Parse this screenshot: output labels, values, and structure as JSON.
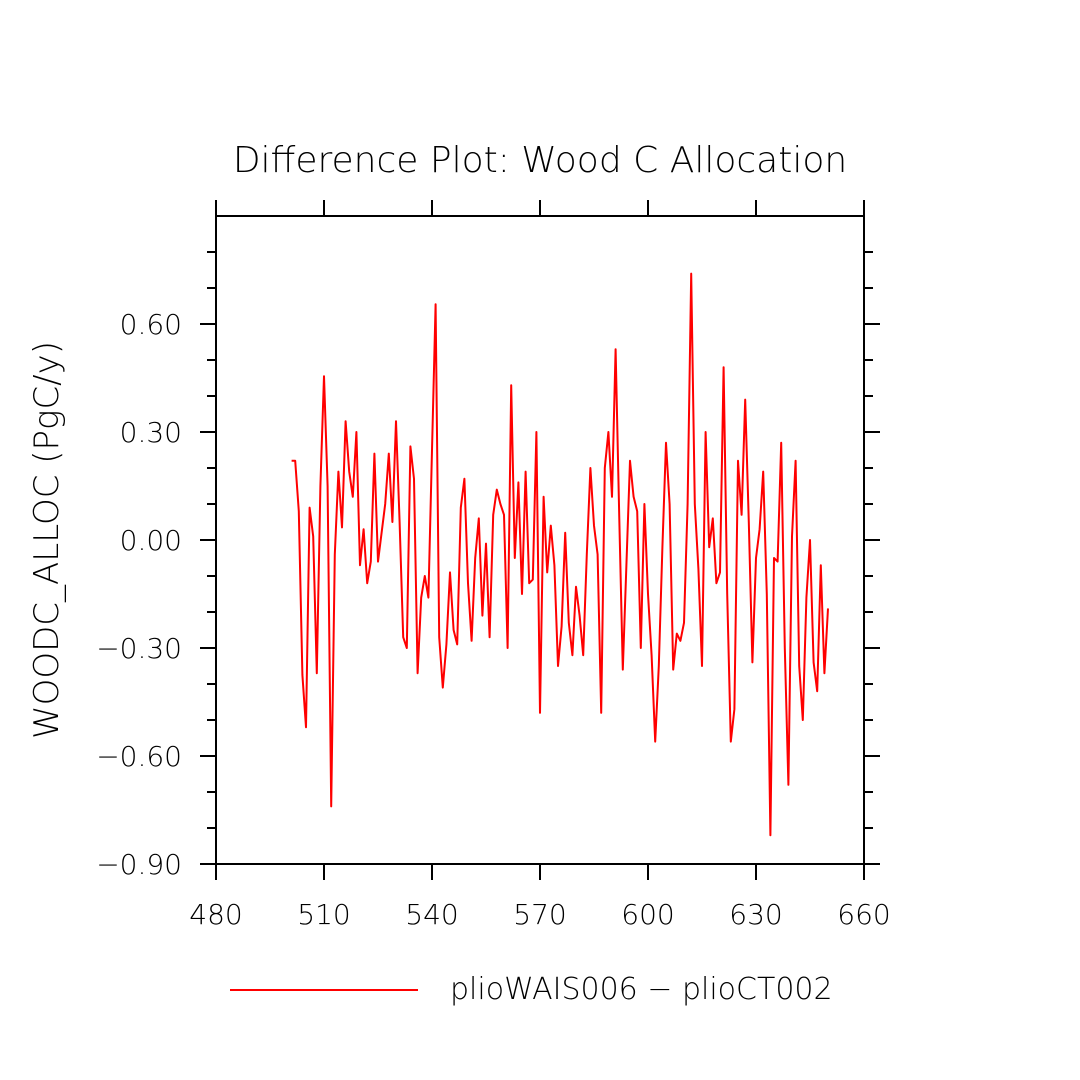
{
  "chart_data": {
    "type": "line",
    "title": "Difference Plot: Wood C Allocation",
    "y_label": "WOODC_ALLOC  (PgC/y)",
    "xlim": [
      480,
      660
    ],
    "xticks": [
      480,
      510,
      540,
      570,
      600,
      630,
      660
    ],
    "ylim": [
      -0.9,
      0.9
    ],
    "yticks": [
      {
        "value": -0.9,
        "label": "−0.90"
      },
      {
        "value": -0.6,
        "label": "−0.60"
      },
      {
        "value": -0.3,
        "label": "−0.30"
      },
      {
        "value": 0,
        "label": "0.00"
      },
      {
        "value": 0.3,
        "label": "0.30"
      },
      {
        "value": 0.6,
        "label": "0.60"
      }
    ],
    "yminorticks": [
      -0.8,
      -0.7,
      -0.5,
      -0.4,
      -0.2,
      -0.1,
      0.1,
      0.2,
      0.4,
      0.5,
      0.7,
      0.8
    ],
    "legend": "bottom",
    "series": [
      {
        "name": "plioWAIS006 − plioCT002",
        "color": "#ff0000",
        "x": [
          501,
          502,
          503,
          504,
          505,
          506,
          507,
          508,
          509,
          510,
          511,
          512,
          513,
          514,
          515,
          516,
          517,
          518,
          519,
          520,
          521,
          522,
          523,
          524,
          525,
          526,
          527,
          528,
          529,
          530,
          531,
          532,
          533,
          534,
          535,
          536,
          537,
          538,
          539,
          540,
          541,
          542,
          543,
          544,
          545,
          546,
          547,
          548,
          549,
          550,
          551,
          552,
          553,
          554,
          555,
          556,
          557,
          558,
          559,
          560,
          561,
          562,
          563,
          564,
          565,
          566,
          567,
          568,
          569,
          570,
          571,
          572,
          573,
          574,
          575,
          576,
          577,
          578,
          579,
          580,
          581,
          582,
          583,
          584,
          585,
          586,
          587,
          588,
          589,
          590,
          591,
          592,
          593,
          594,
          595,
          596,
          597,
          598,
          599,
          600,
          601,
          602,
          603,
          604,
          605,
          606,
          607,
          608,
          609,
          610,
          611,
          612,
          613,
          614,
          615,
          616,
          617,
          618,
          619,
          620,
          621,
          622,
          623,
          624,
          625,
          626,
          627,
          628,
          629,
          630,
          631,
          632,
          633,
          634,
          635,
          636,
          637,
          638,
          639,
          640,
          641,
          642,
          643,
          644,
          645,
          646,
          647,
          648,
          649,
          650
        ],
        "values": [
          0.22,
          0.22,
          0.08,
          -0.375,
          -0.52,
          0.09,
          0.01,
          -0.37,
          0.15,
          0.455,
          0.15,
          -0.74,
          -0.04,
          0.19,
          0.035,
          0.33,
          0.19,
          0.12,
          0.3,
          -0.07,
          0.03,
          -0.12,
          -0.06,
          0.24,
          -0.06,
          0.02,
          0.1,
          0.24,
          0.05,
          0.33,
          0.05,
          -0.27,
          -0.3,
          0.26,
          0.17,
          -0.37,
          -0.16,
          -0.1,
          -0.16,
          0.25,
          0.655,
          -0.27,
          -0.41,
          -0.29,
          -0.09,
          -0.25,
          -0.29,
          0.09,
          0.17,
          -0.12,
          -0.28,
          -0.05,
          0.06,
          -0.21,
          -0.01,
          -0.27,
          0.07,
          0.14,
          0.1,
          0.07,
          -0.3,
          0.43,
          -0.05,
          0.16,
          -0.15,
          0.19,
          -0.12,
          -0.11,
          0.3,
          -0.48,
          0.12,
          -0.09,
          0.04,
          -0.07,
          -0.35,
          -0.24,
          0.02,
          -0.23,
          -0.32,
          -0.13,
          -0.21,
          -0.32,
          -0.04,
          0.2,
          0.04,
          -0.04,
          -0.48,
          0.2,
          0.3,
          0.12,
          0.53,
          0.07,
          -0.36,
          -0.07,
          0.22,
          0.12,
          0.08,
          -0.3,
          0.1,
          -0.15,
          -0.32,
          -0.56,
          -0.35,
          -0.02,
          0.27,
          0.1,
          -0.36,
          -0.26,
          -0.28,
          -0.23,
          0.1,
          0.74,
          0.1,
          -0.08,
          -0.35,
          0.3,
          -0.02,
          0.06,
          -0.12,
          -0.09,
          0.48,
          -0.15,
          -0.56,
          -0.47,
          0.22,
          0.07,
          0.39,
          0.05,
          -0.34,
          -0.05,
          0.03,
          0.19,
          -0.15,
          -0.82,
          -0.05,
          -0.06,
          0.27,
          -0.3,
          -0.68,
          0.01,
          0.22,
          -0.35,
          -0.5,
          -0.16,
          0.0,
          -0.34,
          -0.42,
          -0.07,
          -0.37,
          -0.19
        ]
      }
    ]
  }
}
